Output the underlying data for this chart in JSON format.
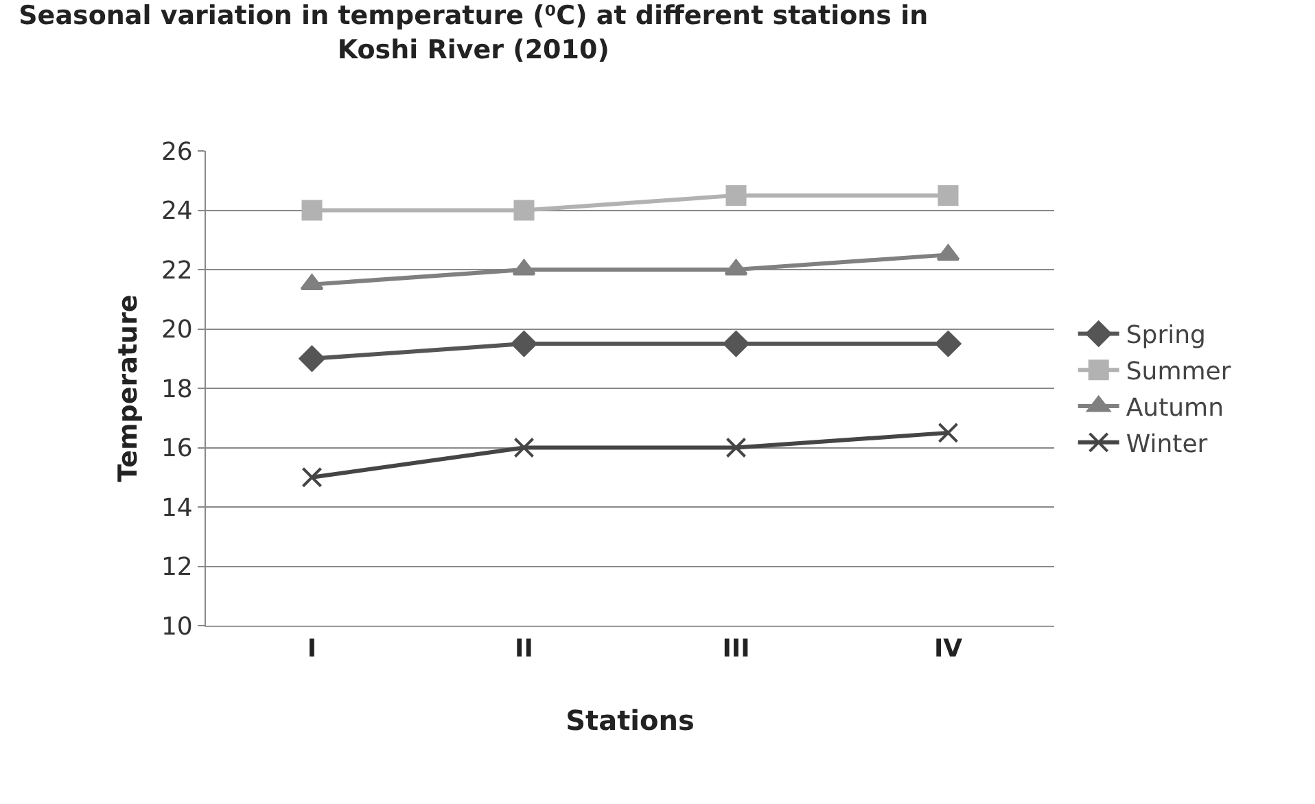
{
  "chart_data": {
    "type": "line",
    "title": "Seasonal variation in temperature (⁰C) at different stations in\nKoshi River (2010)",
    "xlabel": "Stations",
    "ylabel": "Temperature",
    "categories": [
      "I",
      "II",
      "III",
      "IV"
    ],
    "series": [
      {
        "name": "Spring",
        "color": "#555555",
        "marker": "diamond",
        "values": [
          19,
          19.5,
          19.5,
          19.5
        ]
      },
      {
        "name": "Summer",
        "color": "#b2b2b2",
        "marker": "square",
        "values": [
          24,
          24,
          24.5,
          24.5
        ]
      },
      {
        "name": "Autumn",
        "color": "#808080",
        "marker": "triangle",
        "values": [
          21.5,
          22,
          22,
          22.5
        ]
      },
      {
        "name": "Winter",
        "color": "#454545",
        "marker": "cross",
        "values": [
          15,
          16,
          16,
          16.5
        ]
      }
    ],
    "ylim": [
      10,
      26
    ],
    "yticks": [
      10,
      12,
      14,
      16,
      18,
      20,
      22,
      24,
      26
    ],
    "grid": "y",
    "legend": "right",
    "line_style": "solid"
  }
}
